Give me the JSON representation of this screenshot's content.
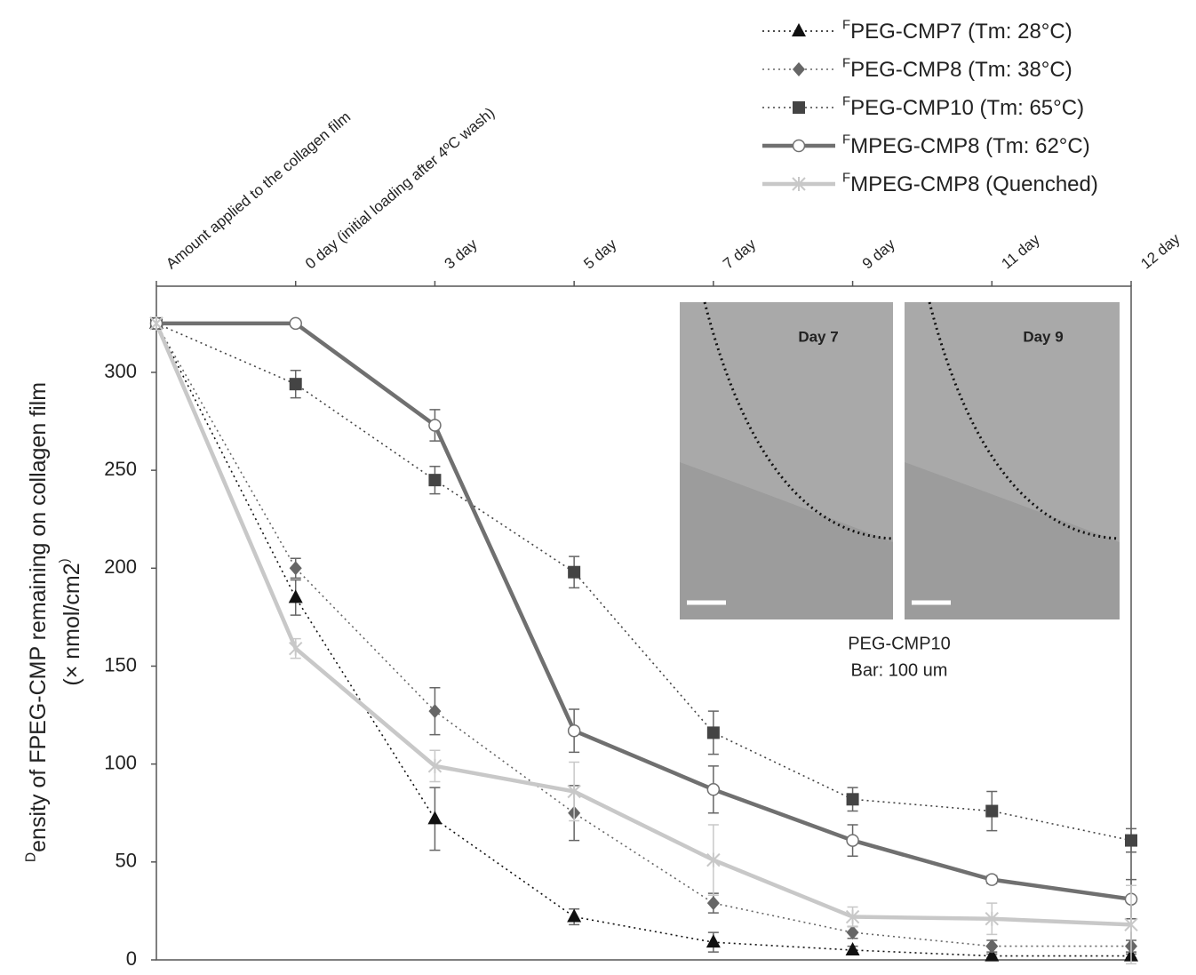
{
  "chart_data": {
    "type": "line",
    "y_label": [
      "Density of FPEG-CMP remaining on collagen film",
      "(× nmol/cm2)"
    ],
    "categories": [
      "Amount applied to the collagen film",
      "0 day (initial loading after 4ºC wash)",
      "3 day",
      "5 day",
      "7 day",
      "9 day",
      "11 day",
      "12 day"
    ],
    "ylim": [
      0,
      344
    ],
    "yticks": [
      0,
      50,
      100,
      150,
      200,
      250,
      300
    ],
    "series": [
      {
        "name": "FPEG-CMP7 (Tm: 28°C)",
        "color": "#111111",
        "marker": "triangle",
        "linestyle": "dotted",
        "values": [
          325,
          185,
          72,
          22,
          9,
          5,
          2,
          2
        ],
        "errors": [
          0,
          9,
          16,
          4,
          5,
          2,
          1,
          1
        ]
      },
      {
        "name": "FPEG-CMP8 (Tm: 38°C)",
        "color": "#666666",
        "marker": "diamond",
        "linestyle": "dotted",
        "values": [
          325,
          200,
          127,
          75,
          29,
          14,
          7,
          7
        ],
        "errors": [
          0,
          5,
          12,
          14,
          5,
          3,
          3,
          3
        ]
      },
      {
        "name": "FPEG-CMP10 (Tm: 65°C)",
        "color": "#444444",
        "marker": "square",
        "linestyle": "dotted",
        "values": [
          325,
          294,
          245,
          198,
          116,
          82,
          76,
          61
        ],
        "errors": [
          0,
          7,
          7,
          8,
          11,
          6,
          10,
          6
        ]
      },
      {
        "name": "FMPEG-CMP8 (Tm: 62°C)",
        "color": "#707070",
        "marker": "circle",
        "linestyle": "solid",
        "values": [
          325,
          325,
          273,
          117,
          87,
          61,
          41,
          31
        ],
        "errors": [
          0,
          0,
          8,
          11,
          12,
          8,
          2,
          10
        ]
      },
      {
        "name": "FMPEG-CMP8 (Quenched)",
        "color": "#c8c8c8",
        "marker": "cross",
        "linestyle": "solid",
        "values": [
          325,
          159,
          99,
          86,
          51,
          22,
          21,
          18
        ],
        "errors": [
          0,
          5,
          8,
          15,
          18,
          5,
          8,
          20
        ]
      }
    ],
    "inset": {
      "panels": [
        "Day 7",
        "Day 9"
      ],
      "caption": [
        "PEG-CMP10",
        "Bar: 100 um"
      ]
    }
  }
}
